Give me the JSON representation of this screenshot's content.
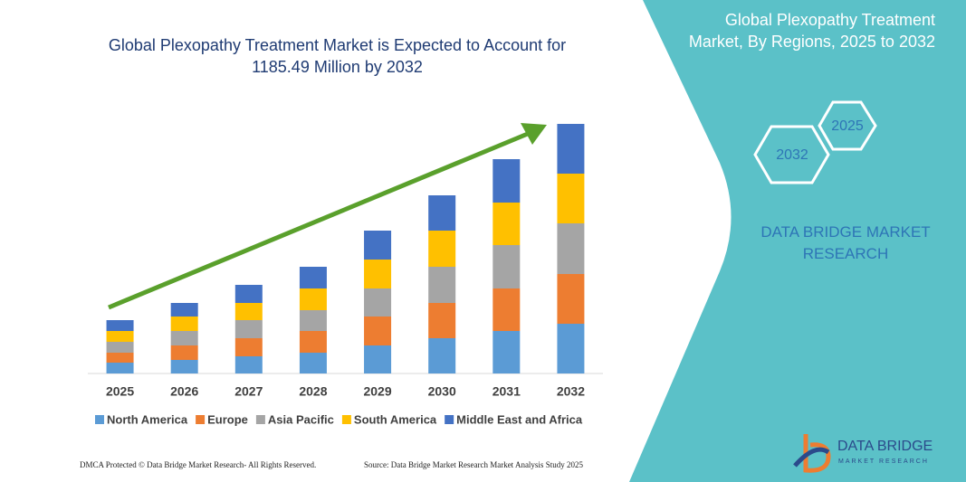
{
  "chart_data": {
    "type": "stacked-bar",
    "title": "Global Plexopathy Treatment Market is Expected to Account for 1185.49 Million by 2032",
    "categories": [
      "2025",
      "2026",
      "2027",
      "2028",
      "2029",
      "2030",
      "2031",
      "2032"
    ],
    "series": [
      {
        "name": "North America",
        "color": "#5b9bd5",
        "values": [
          12,
          15,
          19,
          23,
          31,
          39,
          47,
          55
        ]
      },
      {
        "name": "Europe",
        "color": "#ed7d31",
        "values": [
          11,
          16,
          20,
          24,
          32,
          39,
          47,
          55
        ]
      },
      {
        "name": "Asia Pacific",
        "color": "#a5a5a5",
        "values": [
          12,
          16,
          20,
          23,
          31,
          40,
          48,
          56
        ]
      },
      {
        "name": "South America",
        "color": "#ffc000",
        "values": [
          12,
          16,
          19,
          24,
          32,
          40,
          47,
          55
        ]
      },
      {
        "name": "Middle East and Africa",
        "color": "#4472c4",
        "values": [
          12,
          15,
          20,
          24,
          32,
          39,
          48,
          55
        ]
      }
    ],
    "ylim": [
      0,
      280
    ],
    "legend": "bottom"
  },
  "panel": {
    "title": "Global Plexopathy Treatment Market, By Regions, 2025 to 2032",
    "hex_front": "2032",
    "hex_back": "2025",
    "brand": "DATA BRIDGE MARKET RESEARCH"
  },
  "footer": {
    "left": "DMCA Protected © Data Bridge Market Research- All Rights Reserved.",
    "right": "Source: Data Bridge Market Research Market Analysis Study 2025"
  },
  "logo": {
    "name": "DATA BRIDGE",
    "tagline": "MARKET RESEARCH"
  }
}
